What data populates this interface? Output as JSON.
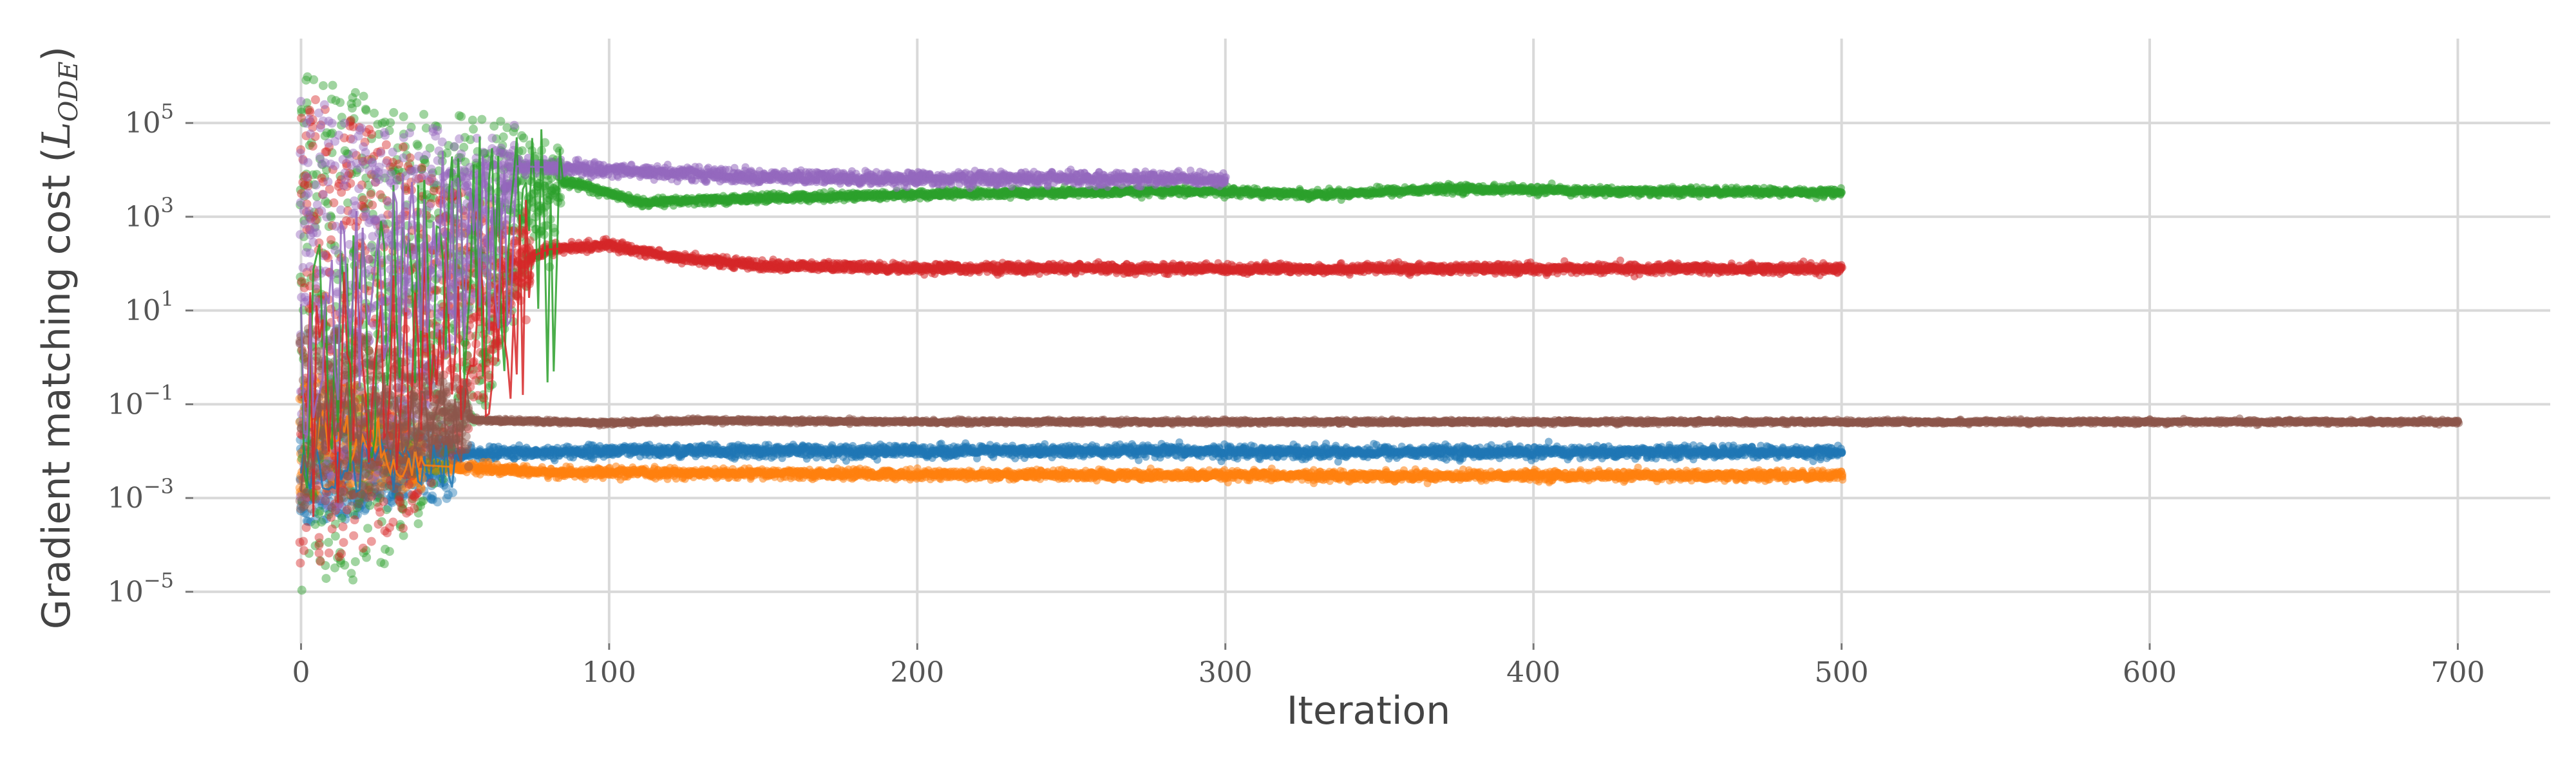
{
  "chart_data": {
    "type": "scatter",
    "title": "",
    "xlabel": "Iteration",
    "ylabel": "Gradient matching cost (L_ODE)",
    "ylabel_parts": {
      "text": "Gradient matching cost (",
      "symbol": "L",
      "subscript": "ODE",
      "close": ")"
    },
    "yscale": "log",
    "xlim": [
      -35,
      730
    ],
    "ylim_exponent": [
      -6.1,
      6.8
    ],
    "x_ticks": [
      0,
      100,
      200,
      300,
      400,
      500,
      600,
      700
    ],
    "y_ticks": [
      {
        "base": "10",
        "exp": "5",
        "value_exp": 5
      },
      {
        "base": "10",
        "exp": "3",
        "value_exp": 3
      },
      {
        "base": "10",
        "exp": "1",
        "value_exp": 1
      },
      {
        "base": "10",
        "exp": "−1",
        "value_exp": -1
      },
      {
        "base": "10",
        "exp": "−3",
        "value_exp": -3
      },
      {
        "base": "10",
        "exp": "−5",
        "value_exp": -5
      }
    ],
    "grid": true,
    "legend": "none",
    "series": [
      {
        "color": "#1f77b4",
        "n_iter": 500,
        "start": 0.004,
        "path": [
          [
            0,
            0.004
          ],
          [
            20,
            0.006
          ],
          [
            60,
            0.009
          ],
          [
            100,
            0.01
          ],
          [
            200,
            0.01
          ],
          [
            300,
            0.0098
          ],
          [
            400,
            0.0095
          ],
          [
            500,
            0.0095
          ]
        ],
        "early_range": [
          0.0003,
          0.05
        ],
        "early_until": 50,
        "late_spread": 0.18
      },
      {
        "color": "#ff7f0e",
        "n_iter": 500,
        "start": 0.3,
        "path": [
          [
            0,
            0.3
          ],
          [
            15,
            0.02
          ],
          [
            40,
            0.005
          ],
          [
            80,
            0.0035
          ],
          [
            200,
            0.0032
          ],
          [
            300,
            0.003
          ],
          [
            400,
            0.003
          ],
          [
            500,
            0.003
          ]
        ],
        "early_range": [
          0.001,
          0.4
        ],
        "early_until": 40,
        "late_spread": 0.14
      },
      {
        "color": "#2ca02c",
        "n_iter": 500,
        "start": 0.05,
        "path": [
          [
            0,
            0.05
          ],
          [
            20,
            1
          ],
          [
            40,
            1000
          ],
          [
            70,
            8000
          ],
          [
            90,
            5000
          ],
          [
            110,
            2000
          ],
          [
            150,
            2500
          ],
          [
            200,
            3000
          ],
          [
            250,
            3300
          ],
          [
            300,
            3500
          ],
          [
            330,
            3000
          ],
          [
            375,
            4000
          ],
          [
            420,
            3500
          ],
          [
            500,
            3300
          ]
        ],
        "early_range": [
          1e-05,
          1000000
        ],
        "early_until": 85,
        "late_spread": 0.12
      },
      {
        "color": "#d62728",
        "n_iter": 500,
        "start": 0.002,
        "path": [
          [
            0,
            0.002
          ],
          [
            20,
            0.05
          ],
          [
            40,
            2
          ],
          [
            60,
            50
          ],
          [
            80,
            200
          ],
          [
            100,
            250
          ],
          [
            120,
            140
          ],
          [
            150,
            90
          ],
          [
            200,
            80
          ],
          [
            300,
            78
          ],
          [
            400,
            78
          ],
          [
            500,
            78
          ]
        ],
        "early_range": [
          4e-05,
          400000
        ],
        "early_until": 75,
        "late_spread": 0.14
      },
      {
        "color": "#9467bd",
        "n_iter": 300,
        "start": 0.01,
        "path": [
          [
            0,
            0.01
          ],
          [
            20,
            100
          ],
          [
            40,
            3000
          ],
          [
            70,
            12000
          ],
          [
            100,
            10000
          ],
          [
            150,
            7000
          ],
          [
            200,
            6500
          ],
          [
            250,
            6500
          ],
          [
            300,
            6500
          ]
        ],
        "early_range": [
          0.0005,
          300000
        ],
        "early_until": 70,
        "late_spread": 0.2
      },
      {
        "color": "#8c564b",
        "n_iter": 700,
        "start": 0.003,
        "path": [
          [
            0,
            0.003
          ],
          [
            20,
            0.05
          ],
          [
            40,
            0.06
          ],
          [
            60,
            0.045
          ],
          [
            100,
            0.04
          ],
          [
            130,
            0.045
          ],
          [
            200,
            0.042
          ],
          [
            400,
            0.042
          ],
          [
            700,
            0.042
          ]
        ],
        "early_range": [
          0.0005,
          5
        ],
        "early_until": 55,
        "late_spread": 0.06
      }
    ]
  }
}
